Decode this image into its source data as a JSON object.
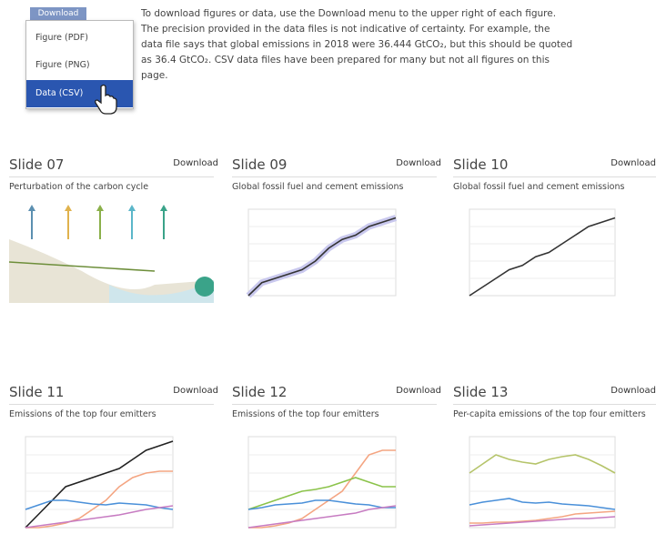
{
  "menu": {
    "button": "Download",
    "items": [
      "Figure (PDF)",
      "Figure (PNG)",
      "Data (CSV)"
    ]
  },
  "intro": "To download figures or data, use the Download menu to the upper right of each figure. The precision provided in the data files is not indicative of certainty. For example, the data file says that global emissions in 2018 were 36.444 GtCO₂, but this should be quoted as 36.4 GtCO₂. CSV data files have been prepared for many but not all figures on this page.",
  "slides": [
    {
      "title": "Slide 07",
      "download": "Download",
      "subtitle": "Perturbation of the carbon cycle"
    },
    {
      "title": "Slide 09",
      "download": "Download",
      "subtitle": "Global fossil fuel and cement emissions"
    },
    {
      "title": "Slide 10",
      "download": "Download",
      "subtitle": "Global fossil fuel and cement emissions"
    },
    {
      "title": "Slide 11",
      "download": "Download",
      "subtitle": "Emissions of the top four emitters"
    },
    {
      "title": "Slide 12",
      "download": "Download",
      "subtitle": "Emissions of the top four emitters"
    },
    {
      "title": "Slide 13",
      "download": "Download",
      "subtitle": "Per-capita emissions of the top four emitters"
    }
  ]
}
